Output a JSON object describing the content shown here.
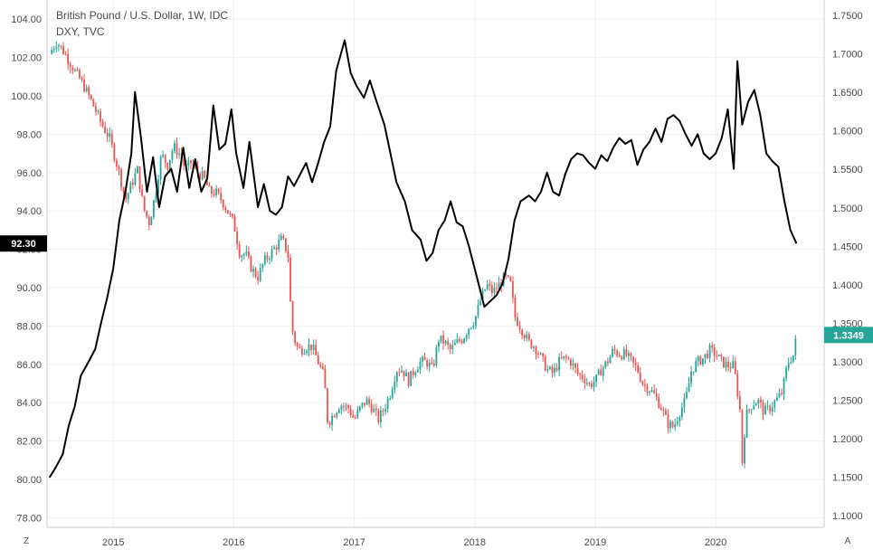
{
  "header": {
    "title": "British Pound / U.S. Dollar, 1W, IDC",
    "subtitle": "DXY, TVC"
  },
  "badges": {
    "left_value": "92.30",
    "right_value": "1.3349",
    "left_color": "#000000",
    "right_color": "#26a69a"
  },
  "corner": {
    "left": "Z",
    "right": "A"
  },
  "chart_data": {
    "type": "line",
    "x_axis": {
      "labels": [
        "2015",
        "2016",
        "2017",
        "2018",
        "2019",
        "2020"
      ],
      "range": [
        2014.45,
        2020.9
      ]
    },
    "y_left": {
      "labels": [
        "104.00",
        "102.00",
        "100.00",
        "98.00",
        "96.00",
        "94.00",
        "92.00",
        "90.00",
        "88.00",
        "86.00",
        "84.00",
        "82.00",
        "80.00",
        "78.00"
      ],
      "range": [
        77.5,
        105.0
      ]
    },
    "y_right": {
      "labels": [
        "1.7500",
        "1.7000",
        "1.6500",
        "1.6000",
        "1.5500",
        "1.5000",
        "1.4500",
        "1.4000",
        "1.3500",
        "1.3000",
        "1.2500",
        "1.2000",
        "1.1500",
        "1.1000"
      ],
      "range": [
        1.085,
        1.77
      ]
    },
    "grid": true,
    "series": [
      {
        "kind": "candlestick",
        "axis": "right",
        "up_color": "#26a69a",
        "down_color": "#ef5350",
        "points": [
          [
            2014.47,
            1.7
          ],
          [
            2014.53,
            1.716
          ],
          [
            2014.6,
            1.7
          ],
          [
            2014.67,
            1.68
          ],
          [
            2014.75,
            1.66
          ],
          [
            2014.82,
            1.638
          ],
          [
            2014.9,
            1.61
          ],
          [
            2014.97,
            1.59
          ],
          [
            2015.05,
            1.545
          ],
          [
            2015.1,
            1.51
          ],
          [
            2015.15,
            1.53
          ],
          [
            2015.2,
            1.55
          ],
          [
            2015.25,
            1.5
          ],
          [
            2015.3,
            1.48
          ],
          [
            2015.35,
            1.52
          ],
          [
            2015.4,
            1.57
          ],
          [
            2015.45,
            1.555
          ],
          [
            2015.5,
            1.58
          ],
          [
            2015.55,
            1.57
          ],
          [
            2015.6,
            1.55
          ],
          [
            2015.65,
            1.56
          ],
          [
            2015.7,
            1.545
          ],
          [
            2015.75,
            1.54
          ],
          [
            2015.8,
            1.52
          ],
          [
            2015.85,
            1.52
          ],
          [
            2015.9,
            1.51
          ],
          [
            2015.95,
            1.495
          ],
          [
            2016.0,
            1.48
          ],
          [
            2016.05,
            1.44
          ],
          [
            2016.1,
            1.44
          ],
          [
            2016.15,
            1.42
          ],
          [
            2016.2,
            1.41
          ],
          [
            2016.25,
            1.43
          ],
          [
            2016.3,
            1.44
          ],
          [
            2016.35,
            1.45
          ],
          [
            2016.4,
            1.46
          ],
          [
            2016.45,
            1.44
          ],
          [
            2016.48,
            1.345
          ],
          [
            2016.52,
            1.32
          ],
          [
            2016.55,
            1.315
          ],
          [
            2016.6,
            1.32
          ],
          [
            2016.65,
            1.32
          ],
          [
            2016.7,
            1.3
          ],
          [
            2016.75,
            1.28
          ],
          [
            2016.78,
            1.22
          ],
          [
            2016.82,
            1.23
          ],
          [
            2016.88,
            1.245
          ],
          [
            2016.95,
            1.24
          ],
          [
            2017.0,
            1.225
          ],
          [
            2017.05,
            1.24
          ],
          [
            2017.1,
            1.25
          ],
          [
            2017.15,
            1.24
          ],
          [
            2017.2,
            1.225
          ],
          [
            2017.25,
            1.24
          ],
          [
            2017.3,
            1.26
          ],
          [
            2017.35,
            1.29
          ],
          [
            2017.4,
            1.29
          ],
          [
            2017.45,
            1.275
          ],
          [
            2017.5,
            1.29
          ],
          [
            2017.55,
            1.3
          ],
          [
            2017.6,
            1.3
          ],
          [
            2017.65,
            1.29
          ],
          [
            2017.7,
            1.33
          ],
          [
            2017.75,
            1.325
          ],
          [
            2017.8,
            1.315
          ],
          [
            2017.85,
            1.325
          ],
          [
            2017.9,
            1.33
          ],
          [
            2017.95,
            1.345
          ],
          [
            2018.0,
            1.355
          ],
          [
            2018.05,
            1.38
          ],
          [
            2018.1,
            1.4
          ],
          [
            2018.15,
            1.39
          ],
          [
            2018.2,
            1.4
          ],
          [
            2018.25,
            1.41
          ],
          [
            2018.3,
            1.4
          ],
          [
            2018.33,
            1.36
          ],
          [
            2018.38,
            1.345
          ],
          [
            2018.45,
            1.325
          ],
          [
            2018.5,
            1.32
          ],
          [
            2018.55,
            1.305
          ],
          [
            2018.6,
            1.29
          ],
          [
            2018.65,
            1.285
          ],
          [
            2018.7,
            1.3
          ],
          [
            2018.75,
            1.305
          ],
          [
            2018.8,
            1.3
          ],
          [
            2018.85,
            1.285
          ],
          [
            2018.9,
            1.28
          ],
          [
            2018.95,
            1.27
          ],
          [
            2019.0,
            1.275
          ],
          [
            2019.05,
            1.29
          ],
          [
            2019.1,
            1.3
          ],
          [
            2019.15,
            1.315
          ],
          [
            2019.2,
            1.31
          ],
          [
            2019.25,
            1.31
          ],
          [
            2019.3,
            1.3
          ],
          [
            2019.35,
            1.29
          ],
          [
            2019.4,
            1.27
          ],
          [
            2019.45,
            1.265
          ],
          [
            2019.5,
            1.255
          ],
          [
            2019.55,
            1.24
          ],
          [
            2019.6,
            1.22
          ],
          [
            2019.65,
            1.215
          ],
          [
            2019.7,
            1.235
          ],
          [
            2019.75,
            1.25
          ],
          [
            2019.8,
            1.29
          ],
          [
            2019.85,
            1.3
          ],
          [
            2019.9,
            1.305
          ],
          [
            2019.95,
            1.315
          ],
          [
            2020.0,
            1.31
          ],
          [
            2020.05,
            1.3
          ],
          [
            2020.1,
            1.295
          ],
          [
            2020.15,
            1.295
          ],
          [
            2020.2,
            1.24
          ],
          [
            2020.22,
            1.17
          ],
          [
            2020.25,
            1.23
          ],
          [
            2020.3,
            1.245
          ],
          [
            2020.35,
            1.25
          ],
          [
            2020.4,
            1.235
          ],
          [
            2020.45,
            1.24
          ],
          [
            2020.5,
            1.25
          ],
          [
            2020.55,
            1.26
          ],
          [
            2020.6,
            1.3
          ],
          [
            2020.65,
            1.31
          ],
          [
            2020.67,
            1.3349
          ]
        ]
      },
      {
        "kind": "line",
        "axis": "left",
        "color": "#000000",
        "points": [
          [
            2014.47,
            80.1
          ],
          [
            2014.52,
            80.6
          ],
          [
            2014.58,
            81.3
          ],
          [
            2014.63,
            82.8
          ],
          [
            2014.68,
            83.8
          ],
          [
            2014.73,
            85.4
          ],
          [
            2014.8,
            86.2
          ],
          [
            2014.85,
            86.8
          ],
          [
            2014.9,
            88.2
          ],
          [
            2014.95,
            89.5
          ],
          [
            2015.0,
            91.0
          ],
          [
            2015.05,
            93.5
          ],
          [
            2015.1,
            95.0
          ],
          [
            2015.15,
            97.0
          ],
          [
            2015.18,
            100.2
          ],
          [
            2015.23,
            97.8
          ],
          [
            2015.28,
            95.0
          ],
          [
            2015.33,
            96.8
          ],
          [
            2015.38,
            94.2
          ],
          [
            2015.43,
            95.8
          ],
          [
            2015.48,
            96.2
          ],
          [
            2015.53,
            95.0
          ],
          [
            2015.58,
            97.3
          ],
          [
            2015.63,
            95.2
          ],
          [
            2015.68,
            96.7
          ],
          [
            2015.73,
            95.0
          ],
          [
            2015.78,
            95.7
          ],
          [
            2015.83,
            99.5
          ],
          [
            2015.88,
            97.2
          ],
          [
            2015.93,
            97.5
          ],
          [
            2015.98,
            99.3
          ],
          [
            2016.02,
            97.0
          ],
          [
            2016.08,
            95.2
          ],
          [
            2016.13,
            97.6
          ],
          [
            2016.2,
            94.2
          ],
          [
            2016.25,
            95.4
          ],
          [
            2016.3,
            94.0
          ],
          [
            2016.35,
            93.8
          ],
          [
            2016.4,
            94.2
          ],
          [
            2016.45,
            95.8
          ],
          [
            2016.5,
            95.3
          ],
          [
            2016.55,
            95.9
          ],
          [
            2016.6,
            96.5
          ],
          [
            2016.65,
            95.5
          ],
          [
            2016.7,
            96.5
          ],
          [
            2016.75,
            97.6
          ],
          [
            2016.8,
            98.4
          ],
          [
            2016.85,
            101.3
          ],
          [
            2016.92,
            102.9
          ],
          [
            2016.97,
            101.2
          ],
          [
            2017.02,
            100.5
          ],
          [
            2017.08,
            99.9
          ],
          [
            2017.13,
            100.8
          ],
          [
            2017.18,
            99.8
          ],
          [
            2017.25,
            98.5
          ],
          [
            2017.3,
            97.0
          ],
          [
            2017.35,
            95.5
          ],
          [
            2017.42,
            94.5
          ],
          [
            2017.48,
            93.0
          ],
          [
            2017.55,
            92.5
          ],
          [
            2017.6,
            91.4
          ],
          [
            2017.65,
            91.8
          ],
          [
            2017.7,
            93.0
          ],
          [
            2017.75,
            93.5
          ],
          [
            2017.8,
            94.5
          ],
          [
            2017.85,
            93.4
          ],
          [
            2017.9,
            93.2
          ],
          [
            2017.95,
            92.2
          ],
          [
            2018.02,
            90.5
          ],
          [
            2018.08,
            89.0
          ],
          [
            2018.13,
            89.3
          ],
          [
            2018.18,
            89.6
          ],
          [
            2018.23,
            90.2
          ],
          [
            2018.28,
            91.5
          ],
          [
            2018.33,
            93.5
          ],
          [
            2018.38,
            94.5
          ],
          [
            2018.45,
            94.8
          ],
          [
            2018.5,
            94.5
          ],
          [
            2018.55,
            95.0
          ],
          [
            2018.6,
            96.0
          ],
          [
            2018.65,
            95.0
          ],
          [
            2018.7,
            94.8
          ],
          [
            2018.75,
            95.9
          ],
          [
            2018.8,
            96.7
          ],
          [
            2018.85,
            97.0
          ],
          [
            2018.9,
            96.9
          ],
          [
            2018.95,
            96.5
          ],
          [
            2019.0,
            96.2
          ],
          [
            2019.05,
            96.9
          ],
          [
            2019.1,
            96.6
          ],
          [
            2019.15,
            97.3
          ],
          [
            2019.2,
            97.8
          ],
          [
            2019.25,
            97.5
          ],
          [
            2019.3,
            97.7
          ],
          [
            2019.35,
            96.4
          ],
          [
            2019.4,
            97.2
          ],
          [
            2019.45,
            97.6
          ],
          [
            2019.5,
            98.3
          ],
          [
            2019.55,
            97.6
          ],
          [
            2019.6,
            98.8
          ],
          [
            2019.65,
            99.0
          ],
          [
            2019.7,
            98.7
          ],
          [
            2019.75,
            98.0
          ],
          [
            2019.8,
            97.4
          ],
          [
            2019.85,
            98.0
          ],
          [
            2019.9,
            97.0
          ],
          [
            2019.95,
            96.7
          ],
          [
            2020.0,
            97.0
          ],
          [
            2020.05,
            97.8
          ],
          [
            2020.1,
            99.3
          ],
          [
            2020.15,
            96.2
          ],
          [
            2020.18,
            101.8
          ],
          [
            2020.22,
            98.5
          ],
          [
            2020.27,
            99.7
          ],
          [
            2020.32,
            100.3
          ],
          [
            2020.37,
            99.0
          ],
          [
            2020.42,
            97.0
          ],
          [
            2020.47,
            96.6
          ],
          [
            2020.52,
            96.3
          ],
          [
            2020.57,
            94.5
          ],
          [
            2020.62,
            93.0
          ],
          [
            2020.67,
            92.3
          ]
        ]
      }
    ]
  }
}
